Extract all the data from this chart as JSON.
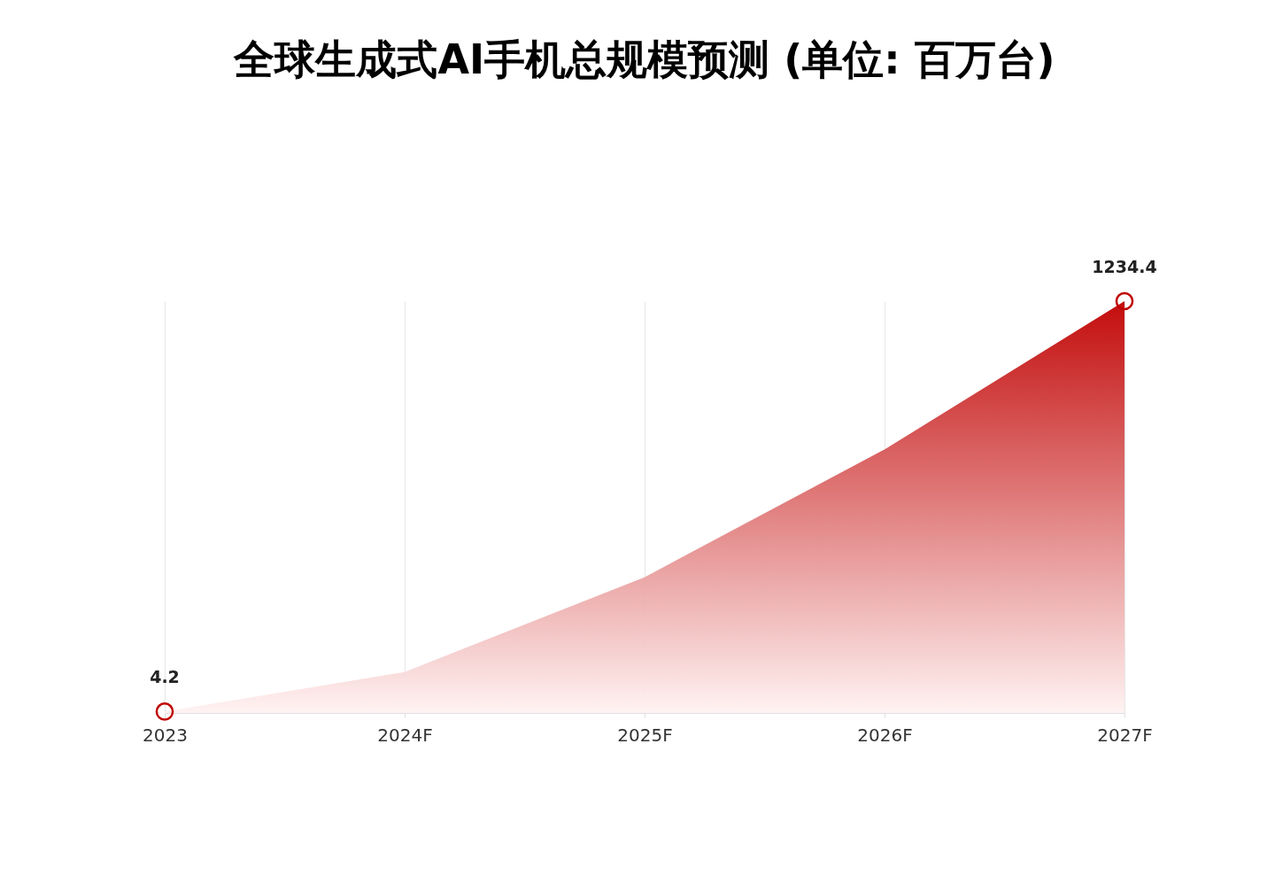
{
  "chart_data": {
    "type": "area",
    "title": "全球生成式AI手机总规模预测 (单位: 百万台)",
    "categories": [
      "2023",
      "2024F",
      "2025F",
      "2026F",
      "2027F"
    ],
    "ylim": [
      0,
      1234.4
    ],
    "grid": "x",
    "series": [
      {
        "color": "#c00000",
        "values": [
          4.2,
          123,
          407,
          790,
          1234.4
        ]
      },
      {
        "type": "scatter",
        "color": "#c00000",
        "marker": "circle",
        "values": [
          4.2,
          null,
          null,
          null,
          1234.4
        ],
        "value_labels": [
          "4.2",
          null,
          null,
          null,
          "1234.4"
        ]
      }
    ]
  }
}
